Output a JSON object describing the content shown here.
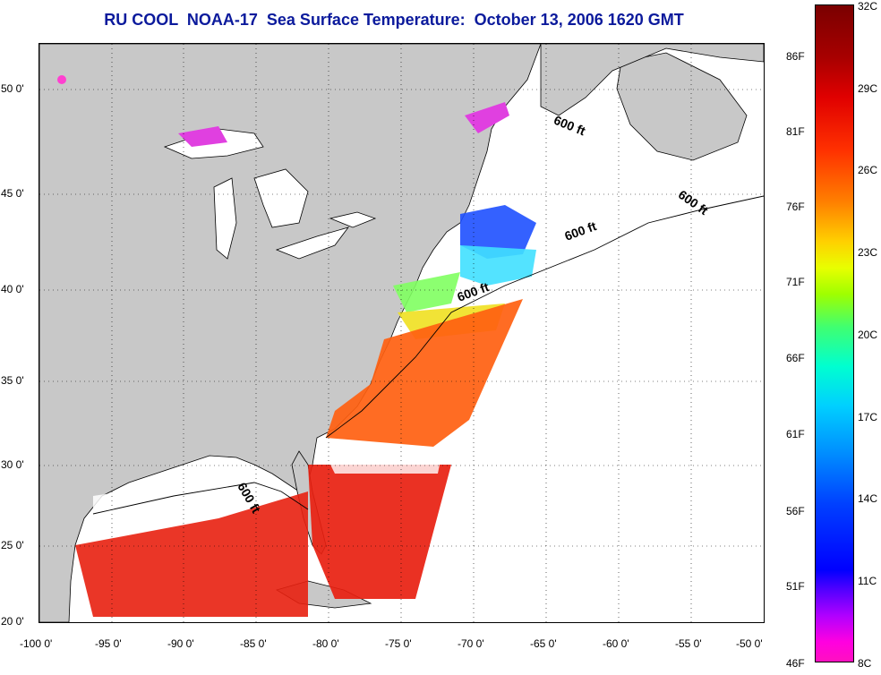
{
  "title": "RU COOL  NOAA-17  Sea Surface Temperature:  October 13, 2006 1620 GMT",
  "map": {
    "lon_ticks": [
      "-100 0'",
      "-95 0'",
      "-90 0'",
      "-85 0'",
      "-80 0'",
      "-75 0'",
      "-70 0'",
      "-65 0'",
      "-60 0'",
      "-55 0'",
      "-50 0'"
    ],
    "lat_ticks": [
      "50 0'",
      "45 0'",
      "40 0'",
      "35 0'",
      "30 0'",
      "25 0'",
      "20 0'"
    ],
    "contour_labels": [
      "600 ft",
      "600 ft",
      "600 ft",
      "600 ft",
      "600 ft"
    ],
    "land_color": "#c8c8c8",
    "ocean_color": "#ffffff"
  },
  "colorbar": {
    "celsius": [
      "32C",
      "29C",
      "26C",
      "23C",
      "20C",
      "17C",
      "14C",
      "11C",
      "8C"
    ],
    "fahrenheit": [
      "86F",
      "81F",
      "76F",
      "71F",
      "66F",
      "61F",
      "56F",
      "51F",
      "46F"
    ]
  }
}
